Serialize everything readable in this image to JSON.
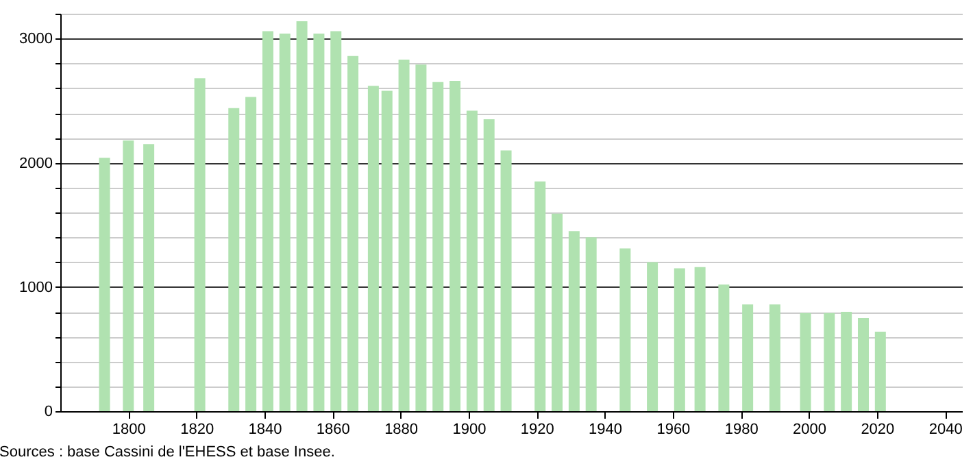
{
  "chart_data": {
    "type": "bar",
    "annotations": [
      "Sources : base Cassini de l'EHESS et base Insee."
    ],
    "x": [
      1793,
      1800,
      1806,
      1821,
      1831,
      1836,
      1841,
      1846,
      1851,
      1856,
      1861,
      1866,
      1872,
      1876,
      1881,
      1886,
      1891,
      1896,
      1901,
      1906,
      1911,
      1921,
      1926,
      1931,
      1936,
      1946,
      1954,
      1962,
      1968,
      1975,
      1982,
      1990,
      1999,
      2006,
      2011,
      2016,
      2021
    ],
    "values": [
      2040,
      2180,
      2150,
      2680,
      2440,
      2530,
      3060,
      3040,
      3140,
      3040,
      3060,
      2860,
      2620,
      2580,
      2830,
      2790,
      2650,
      2660,
      2420,
      2350,
      2100,
      1850,
      1590,
      1450,
      1400,
      1310,
      1200,
      1150,
      1160,
      1020,
      860,
      860,
      790,
      790,
      800,
      750,
      640
    ],
    "color": "#b0e2b0",
    "xlim": [
      1780,
      2045
    ],
    "xticks": [
      1800,
      1820,
      1840,
      1860,
      1880,
      1900,
      1920,
      1940,
      1960,
      1980,
      2000,
      2020,
      2040
    ],
    "ylim": [
      0,
      3200
    ],
    "yticks": [
      0,
      {
        "value": 200,
        "label": null
      },
      {
        "value": 400,
        "label": null
      },
      {
        "value": 600,
        "label": null
      },
      {
        "value": 800,
        "label": null
      },
      1000,
      {
        "value": 1200,
        "label": null
      },
      {
        "value": 1400,
        "label": null
      },
      {
        "value": 1600,
        "label": null
      },
      {
        "value": 1800,
        "label": null
      },
      2000,
      {
        "value": 2200,
        "label": null
      },
      {
        "value": 2400,
        "label": null
      },
      {
        "value": 2600,
        "label": null
      },
      {
        "value": 2800,
        "label": null
      },
      3000,
      {
        "value": 3200,
        "label": null
      }
    ],
    "grid": "y"
  }
}
